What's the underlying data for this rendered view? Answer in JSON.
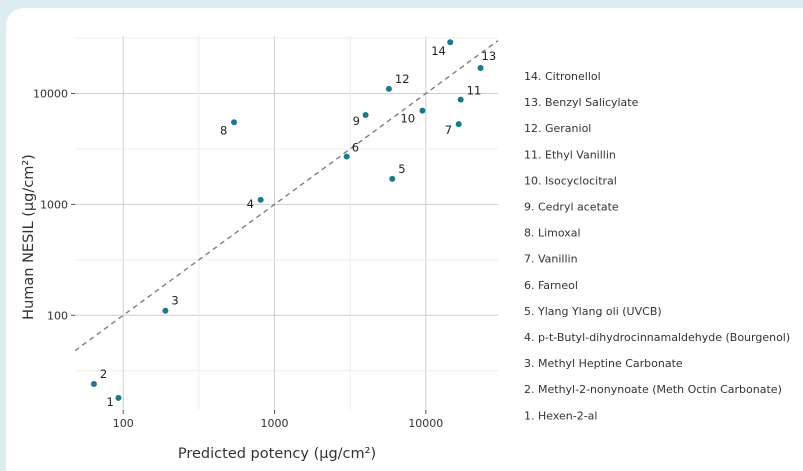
{
  "chart_data": {
    "type": "scatter",
    "x_scale": "log",
    "y_scale": "log",
    "xlabel": "Predicted potency (μg/cm²)",
    "ylabel": "Human NESIL (μg/cm²)",
    "xlim": [
      48,
      30000
    ],
    "ylim": [
      14,
      33000
    ],
    "x_ticks": [
      {
        "value": 100,
        "label": "100"
      },
      {
        "value": 1000,
        "label": "1000"
      },
      {
        "value": 10000,
        "label": "10000"
      }
    ],
    "y_ticks": [
      {
        "value": 100,
        "label": "100"
      },
      {
        "value": 1000,
        "label": "1000"
      },
      {
        "value": 10000,
        "label": "10000"
      }
    ],
    "grid": true,
    "reference_line": "dashed y = x",
    "point_color": "#1a7a8c",
    "line_color": "#777777",
    "points": [
      {
        "id": "1",
        "x": 93,
        "y": 18,
        "name": "Hexen-2-al"
      },
      {
        "id": "2",
        "x": 64,
        "y": 24,
        "name": "Methyl-2-nonynoate (Meth Octin Carbonate)"
      },
      {
        "id": "3",
        "x": 190,
        "y": 110,
        "name": "Methyl Heptine Carbonate"
      },
      {
        "id": "4",
        "x": 810,
        "y": 1100,
        "name": "p-t-Butyl-dihydrocinnamaldehyde (Bourgenol)"
      },
      {
        "id": "5",
        "x": 6000,
        "y": 1700,
        "name": "Ylang Ylang oli (UVCB)"
      },
      {
        "id": "6",
        "x": 3000,
        "y": 2700,
        "name": "Farneol"
      },
      {
        "id": "7",
        "x": 16500,
        "y": 5300,
        "name": "Vanillin"
      },
      {
        "id": "8",
        "x": 540,
        "y": 5500,
        "name": "Limoxal"
      },
      {
        "id": "9",
        "x": 4000,
        "y": 6400,
        "name": "Cedryl acetate"
      },
      {
        "id": "10",
        "x": 9500,
        "y": 7000,
        "name": "Isocyclocitral"
      },
      {
        "id": "11",
        "x": 17000,
        "y": 8800,
        "name": "Ethyl Vanillin"
      },
      {
        "id": "12",
        "x": 5700,
        "y": 11000,
        "name": "Geraniol"
      },
      {
        "id": "13",
        "x": 23000,
        "y": 17000,
        "name": "Benzyl Salicylate"
      },
      {
        "id": "14",
        "x": 14500,
        "y": 29000,
        "name": "Citronellol"
      }
    ],
    "legend": [
      "14. Citronellol",
      "13. Benzyl Salicylate",
      "12. Geraniol",
      "11. Ethyl Vanillin",
      "10. Isocyclocitral",
      "9. Cedryl acetate",
      "8. Limoxal",
      "7. Vanillin",
      "6. Farneol",
      "5. Ylang Ylang oli (UVCB)",
      "4. p-t-Butyl-dihydrocinnamaldehyde (Bourgenol)",
      "3. Methyl Heptine Carbonate",
      "2. Methyl-2-nonynoate (Meth Octin Carbonate)",
      "1. Hexen-2-al"
    ]
  }
}
